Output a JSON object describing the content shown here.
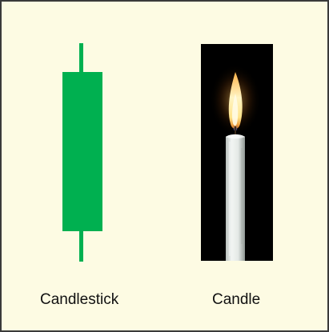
{
  "labels": {
    "candlestick": "Candlestick",
    "candle": "Candle"
  },
  "colors": {
    "panel_background": "#fdfbe3",
    "panel_border": "#3a3a3a",
    "candlestick_green": "#00b050",
    "photo_background": "#000000",
    "candle_wax": "#e8ece9",
    "flame_core": "#fff6c8",
    "flame_outer": "#f4a23a"
  },
  "icons": {
    "candlestick": "candlestick-icon",
    "candle": "lit-candle-image"
  }
}
